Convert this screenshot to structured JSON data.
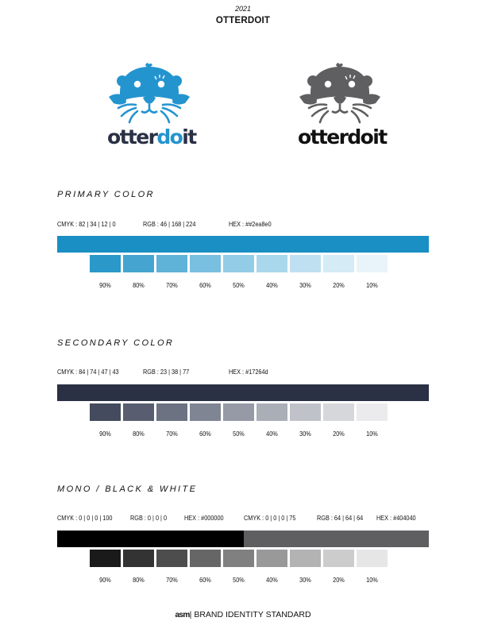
{
  "header": {
    "year": "2021",
    "brand": "OTTERDOIT"
  },
  "logo": {
    "word_prefix": "otter",
    "word_highlight": "do",
    "word_suffix": "it",
    "color_version": {
      "icon_color": "#2494cf",
      "text_color": "#2a3145",
      "highlight_color": "#2494cf"
    },
    "mono_version": {
      "icon_color": "#5f5f61",
      "text_color": "#111111",
      "highlight_color": "#111111"
    }
  },
  "tints": [
    "90%",
    "80%",
    "70%",
    "60%",
    "50%",
    "40%",
    "30%",
    "20%",
    "10%"
  ],
  "primary": {
    "title": "PRIMARY COLOR",
    "cmyk": "CMYK : 82 | 34 | 12 | 0",
    "rgb": "RGB : 46 | 168 | 224",
    "hex": "HEX : ##2ea8e0",
    "color": "#1a8fc3",
    "swatches": [
      "#2a98c9",
      "#45a5d0",
      "#5fb2d8",
      "#79bfdf",
      "#93cce6",
      "#a9d7ec",
      "#bfe0f1",
      "#d5ebf6",
      "#e8f4fa"
    ]
  },
  "secondary": {
    "title": "SECONDARY COLOR",
    "cmyk": "CMYK : 84 | 74 | 47 | 43",
    "rgb": "RGB : 23 | 38 | 77",
    "hex": "HEX : #17264d",
    "color": "#2a3145",
    "swatches": [
      "#444b5e",
      "#585e70",
      "#6c7282",
      "#808594",
      "#959aa6",
      "#aaaeb7",
      "#c0c2c9",
      "#d6d7db",
      "#ebebed"
    ]
  },
  "mono": {
    "title": "MONO / BLACK & WHITE",
    "black_cmyk": "CMYK : 0 | 0 | 0 | 100",
    "black_rgb": "RGB : 0 | 0 | 0",
    "black_hex": "HEX : #000000",
    "gray_cmyk": "CMYK : 0 | 0 | 0 | 75",
    "gray_rgb": "RGB : 64 | 64 | 64",
    "gray_hex": "HEX : #404040",
    "black_color": "#000000",
    "gray_color": "#5f5f61",
    "swatches": [
      "#1a1a1a",
      "#333333",
      "#4d4d4d",
      "#666666",
      "#808080",
      "#999999",
      "#b3b3b3",
      "#cccccc",
      "#e6e6e6"
    ]
  },
  "footer": {
    "mark": "asm",
    "text": "BRAND IDENTITY STANDARD"
  }
}
